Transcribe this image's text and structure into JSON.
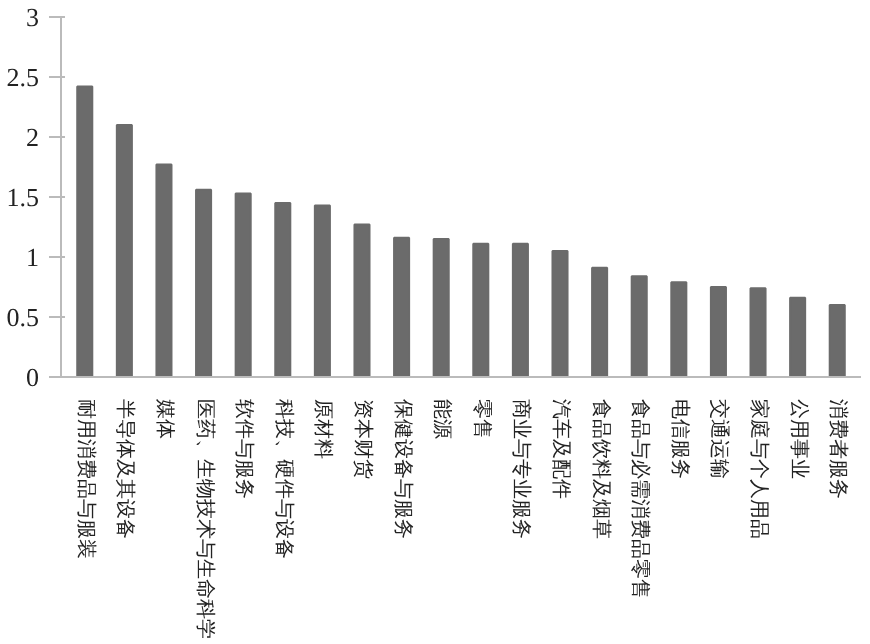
{
  "chart_data": {
    "type": "bar",
    "categories": [
      "耐用消费品与服装",
      "半导体及其设备",
      "媒体",
      "医药、生物技术与生命科学",
      "软件与服务",
      "科技、硬件与设备",
      "原材料",
      "资本财货",
      "保健设备与服务",
      "能源",
      "零售",
      "商业与专业服务",
      "汽车及配件",
      "食品饮料及烟草",
      "食品与必需消费品零售",
      "电信服务",
      "交通运输",
      "家庭与个人用品",
      "公用事业",
      "消费者服务"
    ],
    "values": [
      2.42,
      2.1,
      1.77,
      1.56,
      1.53,
      1.45,
      1.43,
      1.27,
      1.16,
      1.15,
      1.11,
      1.11,
      1.05,
      0.91,
      0.84,
      0.79,
      0.75,
      0.74,
      0.66,
      0.6
    ],
    "color": "#6b6b6b",
    "ylim": [
      0,
      3
    ],
    "yticks": [
      0,
      0.5,
      1,
      1.5,
      2,
      2.5,
      3
    ],
    "grid": false
  }
}
